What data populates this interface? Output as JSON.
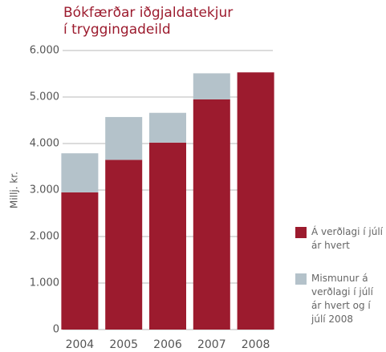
{
  "chart_data": {
    "type": "stacked_bar",
    "title": "Bókfærðar iðgjaldatekjur í tryggingadeild",
    "ylabel": "Millj. kr.",
    "categories": [
      "2004",
      "2005",
      "2006",
      "2007",
      "2008"
    ],
    "series": [
      {
        "name": "Á verðlagi í júlí ár hvert",
        "color": "#9c1b2e",
        "values": [
          2950,
          3650,
          4020,
          4950,
          5530
        ]
      },
      {
        "name": "Mismunur á verðlagi í júlí ár hvert og í júlí 2008",
        "color": "#b4c2ca",
        "values": [
          840,
          920,
          640,
          560,
          0
        ]
      }
    ],
    "ylim": [
      0,
      6000
    ],
    "yticks": [
      0,
      {
        "value": 1000,
        "label": "1.000"
      },
      {
        "value": 2000,
        "label": "2.000"
      },
      {
        "value": 3000,
        "label": "3.000"
      },
      {
        "value": 4000,
        "label": "4.000"
      },
      {
        "value": 5000,
        "label": "5.000"
      },
      {
        "value": 6000,
        "label": "6.000"
      }
    ],
    "grid": true,
    "legend": "right"
  }
}
